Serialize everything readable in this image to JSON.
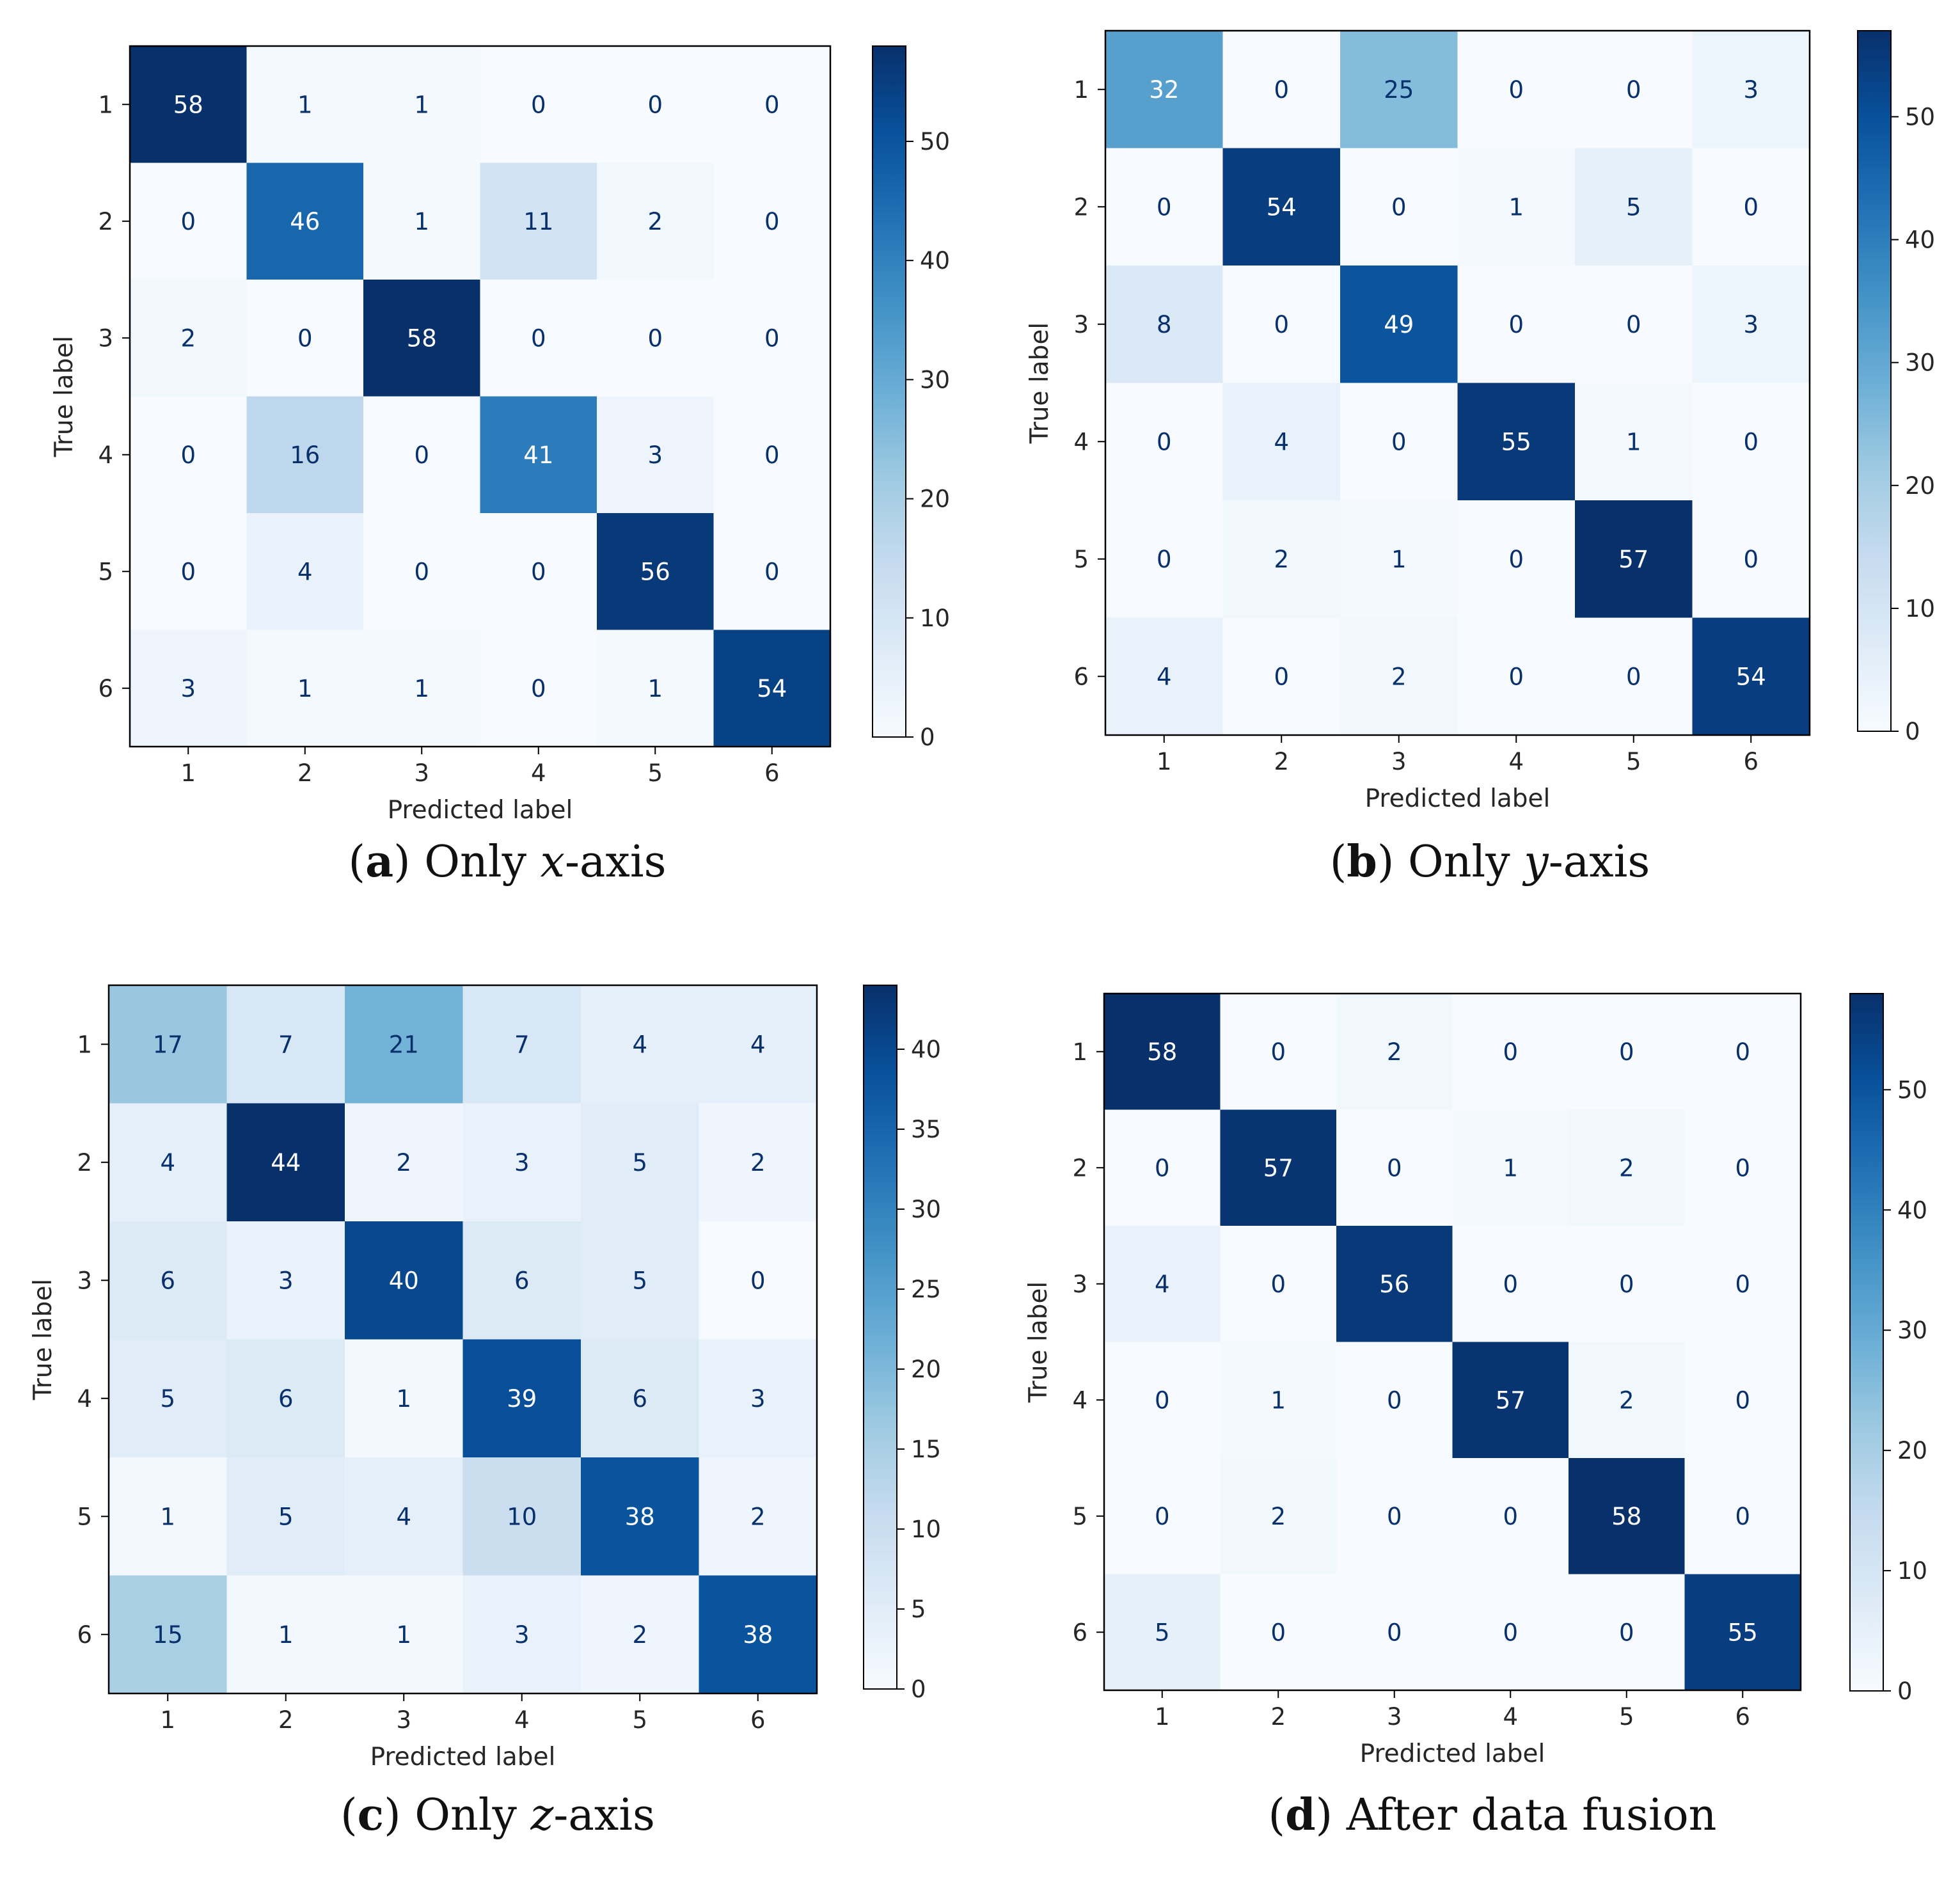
{
  "colormap": {
    "name": "Blues",
    "stops": [
      "#f7fbff",
      "#deebf7",
      "#c6dbef",
      "#9ecae1",
      "#6baed6",
      "#4292c6",
      "#2171b5",
      "#08519c",
      "#08306b"
    ],
    "light_text": "#ffffff",
    "dark_text": "#08306b"
  },
  "chart_data": [
    {
      "type": "heatmap",
      "panel_letter": "a",
      "caption_pre": " Only ",
      "caption_italic": "x",
      "caption_post": "-axis",
      "xlabel": "Predicted label",
      "ylabel": "True label",
      "categories": [
        "1",
        "2",
        "3",
        "4",
        "5",
        "6"
      ],
      "matrix": [
        [
          58,
          1,
          1,
          0,
          0,
          0
        ],
        [
          0,
          46,
          1,
          11,
          2,
          0
        ],
        [
          2,
          0,
          58,
          0,
          0,
          0
        ],
        [
          0,
          16,
          0,
          41,
          3,
          0
        ],
        [
          0,
          4,
          0,
          0,
          56,
          0
        ],
        [
          3,
          1,
          1,
          0,
          1,
          54
        ]
      ],
      "vmin": 0,
      "vmax": 58,
      "colorbar_ticks": [
        0,
        10,
        20,
        30,
        40,
        50
      ]
    },
    {
      "type": "heatmap",
      "panel_letter": "b",
      "caption_pre": " Only ",
      "caption_italic": "y",
      "caption_post": "-axis",
      "xlabel": "Predicted label",
      "ylabel": "True label",
      "categories": [
        "1",
        "2",
        "3",
        "4",
        "5",
        "6"
      ],
      "matrix": [
        [
          32,
          0,
          25,
          0,
          0,
          3
        ],
        [
          0,
          54,
          0,
          1,
          5,
          0
        ],
        [
          8,
          0,
          49,
          0,
          0,
          3
        ],
        [
          0,
          4,
          0,
          55,
          1,
          0
        ],
        [
          0,
          2,
          1,
          0,
          57,
          0
        ],
        [
          4,
          0,
          2,
          0,
          0,
          54
        ]
      ],
      "vmin": 0,
      "vmax": 57,
      "colorbar_ticks": [
        0,
        10,
        20,
        30,
        40,
        50
      ]
    },
    {
      "type": "heatmap",
      "panel_letter": "c",
      "caption_pre": " Only ",
      "caption_italic": "z",
      "caption_post": "-axis",
      "xlabel": "Predicted label",
      "ylabel": "True label",
      "categories": [
        "1",
        "2",
        "3",
        "4",
        "5",
        "6"
      ],
      "matrix": [
        [
          17,
          7,
          21,
          7,
          4,
          4
        ],
        [
          4,
          44,
          2,
          3,
          5,
          2
        ],
        [
          6,
          3,
          40,
          6,
          5,
          0
        ],
        [
          5,
          6,
          1,
          39,
          6,
          3
        ],
        [
          1,
          5,
          4,
          10,
          38,
          2
        ],
        [
          15,
          1,
          1,
          3,
          2,
          38
        ]
      ],
      "vmin": 0,
      "vmax": 44,
      "colorbar_ticks": [
        0,
        5,
        10,
        15,
        20,
        25,
        30,
        35,
        40
      ]
    },
    {
      "type": "heatmap",
      "panel_letter": "d",
      "caption_pre": " After data fusion",
      "caption_italic": "",
      "caption_post": "",
      "xlabel": "Predicted label",
      "ylabel": "True label",
      "categories": [
        "1",
        "2",
        "3",
        "4",
        "5",
        "6"
      ],
      "matrix": [
        [
          58,
          0,
          2,
          0,
          0,
          0
        ],
        [
          0,
          57,
          0,
          1,
          2,
          0
        ],
        [
          4,
          0,
          56,
          0,
          0,
          0
        ],
        [
          0,
          1,
          0,
          57,
          2,
          0
        ],
        [
          0,
          2,
          0,
          0,
          58,
          0
        ],
        [
          5,
          0,
          0,
          0,
          0,
          55
        ]
      ],
      "vmin": 0,
      "vmax": 58,
      "colorbar_ticks": [
        0,
        10,
        20,
        30,
        40,
        50
      ]
    }
  ]
}
